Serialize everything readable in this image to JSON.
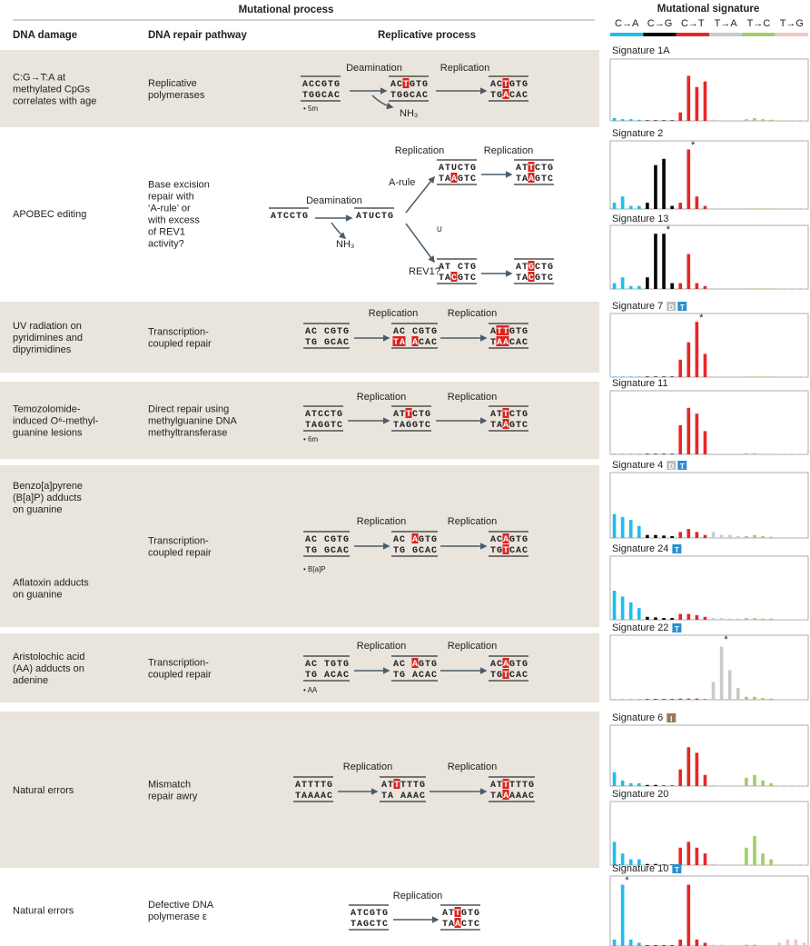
{
  "header": {
    "section": "Mutational process",
    "col1": "DNA damage",
    "col2": "DNA repair pathway",
    "col3": "Replicative process",
    "sig_header": "Mutational signature",
    "classes": [
      {
        "label": "C→A",
        "color": "#1ebff0"
      },
      {
        "label": "C→G",
        "color": "#050708"
      },
      {
        "label": "C→T",
        "color": "#e62725"
      },
      {
        "label": "T→A",
        "color": "#cbcacb"
      },
      {
        "label": "T→C",
        "color": "#a1cf64"
      },
      {
        "label": "T→G",
        "color": "#edc8c5"
      }
    ]
  },
  "rows": [
    {
      "damage": [
        "C:G→T:A at",
        "methylated CpGs",
        "correlates with age"
      ],
      "repair": [
        "Replicative",
        "polymerases"
      ],
      "labels": [
        "Deamination",
        "Replication",
        "NH₃",
        "• 5m"
      ],
      "seqs": [
        {
          "top": {
            "text": "ACCGTG",
            "hl": []
          },
          "bottom": {
            "text": "TGGCAC",
            "hl": []
          }
        },
        {
          "top": {
            "text": "ACTGTG",
            "hl": [
              2
            ]
          },
          "bottom": {
            "text": "TGGCAC",
            "hl": []
          }
        },
        {
          "top": {
            "text": "ACTGTG",
            "hl": [
              2
            ]
          },
          "bottom": {
            "text": "TGACAC",
            "hl": [
              2
            ]
          }
        }
      ]
    },
    {
      "damage": [
        "APOBEC editing"
      ],
      "repair": [
        "Base excision",
        "repair with",
        "‘A-rule’ or",
        "with excess",
        "of REV1",
        "activity?"
      ],
      "labels": [
        "Replication",
        "Replication",
        "A-rule",
        "Deamination",
        "NH₃",
        "U",
        "REV1?"
      ],
      "seqs": [
        {
          "top": {
            "text": "ATCCTG",
            "hl": []
          }
        },
        {
          "top": {
            "text": "ATUCTG",
            "hl": []
          }
        },
        {
          "top": {
            "text": "ATUCTG",
            "hl": []
          },
          "bottom": {
            "text": "TAAGTC",
            "hl": [
              2
            ]
          }
        },
        {
          "top": {
            "text": "ATTCTG",
            "hl": [
              2
            ]
          },
          "bottom": {
            "text": "TAAGTC",
            "hl": [
              2
            ]
          }
        },
        {
          "top": {
            "text": "AT CTG",
            "hl": []
          },
          "bottom": {
            "text": "TACGTC",
            "hl": [
              2
            ]
          }
        },
        {
          "top": {
            "text": "ATGCTG",
            "hl": [
              2
            ]
          },
          "bottom": {
            "text": "TACGTC",
            "hl": [
              2
            ]
          }
        }
      ]
    },
    {
      "damage": [
        "UV radiation on",
        "pyridimines and",
        "dipyrimidines"
      ],
      "repair": [
        "Transcription-",
        "coupled repair"
      ],
      "labels": [
        "Replication",
        "Replication"
      ],
      "seqs": [
        {
          "top": {
            "text": "AC CGTG",
            "hl": []
          },
          "bottom": {
            "text": "TG GCAC",
            "hl": []
          }
        },
        {
          "top": {
            "text": "AC CGTG",
            "hl": []
          },
          "bottom": {
            "text": "TA ACAC",
            "hl": [
              0,
              1,
              3
            ]
          }
        },
        {
          "top": {
            "text": "ATTGTG",
            "hl": [
              1,
              2
            ]
          },
          "bottom": {
            "text": "TAACAC",
            "hl": [
              1,
              2
            ]
          }
        }
      ]
    },
    {
      "damage": [
        "Temozolomide-",
        "induced O⁶-methyl-",
        "guanine lesions"
      ],
      "repair": [
        "Direct repair using",
        "methylguanine DNA",
        "methyltransferase"
      ],
      "labels": [
        "Replication",
        "Replication",
        "• 6m"
      ],
      "seqs": [
        {
          "top": {
            "text": "ATCCTG",
            "hl": []
          },
          "bottom": {
            "text": "TAGGTC",
            "hl": []
          }
        },
        {
          "top": {
            "text": "ATTCTG",
            "hl": [
              2
            ]
          },
          "bottom": {
            "text": "TAGGTC",
            "hl": []
          }
        },
        {
          "top": {
            "text": "ATTCTG",
            "hl": [
              2
            ]
          },
          "bottom": {
            "text": "TAAGTC",
            "hl": [
              2
            ]
          }
        }
      ]
    },
    {
      "damage": [
        "Benzo[a]pyrene",
        "(B[a]P) adducts",
        "on guanine"
      ],
      "damage2": [
        "Aflatoxin adducts",
        "on guanine"
      ],
      "repair": [
        "Transcription-",
        "coupled repair"
      ],
      "labels": [
        "Replication",
        "Replication",
        "• B[a]P"
      ],
      "seqs": [
        {
          "top": {
            "text": "AC CGTG",
            "hl": []
          },
          "bottom": {
            "text": "TG GCAC",
            "hl": []
          }
        },
        {
          "top": {
            "text": "AC AGTG",
            "hl": [
              3
            ]
          },
          "bottom": {
            "text": "TG GCAC",
            "hl": []
          }
        },
        {
          "top": {
            "text": "ACAGTG",
            "hl": [
              2
            ]
          },
          "bottom": {
            "text": "TGTCAC",
            "hl": [
              2
            ]
          }
        }
      ]
    },
    {
      "damage": [
        "Aristolochic acid",
        "(AA) adducts on",
        "adenine"
      ],
      "repair": [
        "Transcription-",
        "coupled repair"
      ],
      "labels": [
        "Replication",
        "Replication",
        "• AA"
      ],
      "seqs": [
        {
          "top": {
            "text": "AC TGTG",
            "hl": []
          },
          "bottom": {
            "text": "TG ACAC",
            "hl": []
          }
        },
        {
          "top": {
            "text": "AC AGTG",
            "hl": [
              3
            ]
          },
          "bottom": {
            "text": "TG ACAC",
            "hl": []
          }
        },
        {
          "top": {
            "text": "ACAGTG",
            "hl": [
              2
            ]
          },
          "bottom": {
            "text": "TGTCAC",
            "hl": [
              2
            ]
          }
        }
      ]
    },
    {
      "damage": [
        "Natural errors"
      ],
      "repair": [
        "Mismatch",
        "repair awry"
      ],
      "labels": [
        "Replication",
        "Replication"
      ],
      "seqs": [
        {
          "top": {
            "text": "ATTTTG",
            "hl": []
          },
          "bottom": {
            "text": "TAAAAC",
            "hl": []
          }
        },
        {
          "top": {
            "text": "ATTTTTG",
            "hl": [
              2
            ]
          },
          "bottom": {
            "text": "TA AAAC",
            "hl": []
          }
        },
        {
          "top": {
            "text": "ATTTTTG",
            "hl": [
              2
            ]
          },
          "bottom": {
            "text": "TAAAAAC",
            "hl": [
              2
            ]
          }
        }
      ]
    },
    {
      "damage": [
        "Natural errors"
      ],
      "repair": [
        "Defective DNA",
        "polymerase ε"
      ],
      "labels": [
        "Replication"
      ],
      "seqs": [
        {
          "top": {
            "text": "ATCGTG",
            "hl": []
          },
          "bottom": {
            "text": "TAGCTC",
            "hl": []
          }
        },
        {
          "top": {
            "text": "ATTGTG",
            "hl": [
              2
            ]
          },
          "bottom": {
            "text": "TAACTC",
            "hl": [
              2
            ]
          }
        }
      ]
    }
  ],
  "signatures": [
    {
      "name": "Signature 1A",
      "badges": [],
      "values": [
        0.05,
        0.03,
        0.03,
        0.02,
        0.01,
        0.01,
        0.01,
        0.01,
        0.15,
        0.8,
        0.6,
        0.7,
        0.02,
        0.01,
        0.01,
        0.01,
        0.03,
        0.05,
        0.03,
        0.02,
        0.01,
        0.01,
        0.01,
        0.01
      ]
    },
    {
      "name": "Signature 2",
      "badges": [],
      "star": "*",
      "star_at": 9,
      "values": [
        0.1,
        0.2,
        0.05,
        0.05,
        0.1,
        0.7,
        0.8,
        0.05,
        0.1,
        0.95,
        0.2,
        0.05,
        0.01,
        0.01,
        0.01,
        0.01,
        0.01,
        0.01,
        0.01,
        0.01,
        0.01,
        0.01,
        0.01,
        0.01
      ]
    },
    {
      "name": "Signature 13",
      "badges": [],
      "star": "*",
      "star_at": 6,
      "values": [
        0.1,
        0.2,
        0.05,
        0.05,
        0.2,
        0.95,
        0.95,
        0.1,
        0.1,
        0.6,
        0.1,
        0.05,
        0.01,
        0.01,
        0.01,
        0.01,
        0.01,
        0.01,
        0.01,
        0.01,
        0.01,
        0.01,
        0.01,
        0.01
      ]
    },
    {
      "name": "Signature 7",
      "badges": [
        "D",
        "T"
      ],
      "star": "*",
      "star_at": 10,
      "values": [
        0.01,
        0.01,
        0.01,
        0.01,
        0.01,
        0.01,
        0.01,
        0.01,
        0.3,
        0.6,
        0.95,
        0.4,
        0.01,
        0.01,
        0.01,
        0.01,
        0.01,
        0.01,
        0.01,
        0.01,
        0.01,
        0.01,
        0.01,
        0.01
      ]
    },
    {
      "name": "Signature 11",
      "badges": [],
      "values": [
        0.01,
        0.01,
        0.01,
        0.01,
        0.01,
        0.01,
        0.01,
        0.01,
        0.5,
        0.8,
        0.7,
        0.4,
        0.01,
        0.01,
        0.01,
        0.01,
        0.02,
        0.02,
        0.01,
        0.01,
        0.01,
        0.01,
        0.01,
        0.01
      ]
    },
    {
      "name": "Signature 4",
      "badges": [
        "D",
        "T"
      ],
      "values": [
        0.4,
        0.35,
        0.3,
        0.2,
        0.05,
        0.05,
        0.04,
        0.03,
        0.1,
        0.15,
        0.1,
        0.05,
        0.1,
        0.05,
        0.05,
        0.03,
        0.03,
        0.05,
        0.03,
        0.02,
        0.01,
        0.01,
        0.01,
        0.01
      ]
    },
    {
      "name": "Signature 24",
      "badges": [
        "T"
      ],
      "values": [
        0.5,
        0.4,
        0.3,
        0.2,
        0.05,
        0.04,
        0.03,
        0.03,
        0.1,
        0.1,
        0.08,
        0.05,
        0.03,
        0.03,
        0.02,
        0.02,
        0.03,
        0.03,
        0.02,
        0.02,
        0.01,
        0.01,
        0.01,
        0.01
      ]
    },
    {
      "name": "Signature 22",
      "badges": [
        "T"
      ],
      "star": "*",
      "star_at": 13,
      "values": [
        0.01,
        0.01,
        0.01,
        0.01,
        0.01,
        0.01,
        0.01,
        0.01,
        0.02,
        0.02,
        0.02,
        0.01,
        0.3,
        0.9,
        0.5,
        0.2,
        0.05,
        0.05,
        0.03,
        0.02,
        0.01,
        0.01,
        0.01,
        0.01
      ]
    },
    {
      "name": "Signature 6",
      "badges": [
        "I"
      ],
      "values": [
        0.25,
        0.1,
        0.05,
        0.05,
        0.02,
        0.02,
        0.01,
        0.01,
        0.3,
        0.7,
        0.6,
        0.2,
        0.02,
        0.01,
        0.01,
        0.01,
        0.15,
        0.2,
        0.1,
        0.05,
        0.01,
        0.01,
        0.01,
        0.01
      ]
    },
    {
      "name": "Signature 20",
      "badges": [],
      "values": [
        0.4,
        0.2,
        0.1,
        0.1,
        0.02,
        0.02,
        0.01,
        0.01,
        0.3,
        0.4,
        0.3,
        0.2,
        0.02,
        0.01,
        0.01,
        0.01,
        0.3,
        0.5,
        0.2,
        0.1,
        0.01,
        0.01,
        0.01,
        0.01
      ]
    },
    {
      "name": "Signature 10",
      "badges": [
        "T"
      ],
      "star": "*",
      "star_at": 1,
      "values": [
        0.1,
        0.95,
        0.1,
        0.05,
        0.01,
        0.01,
        0.01,
        0.01,
        0.1,
        0.95,
        0.1,
        0.05,
        0.02,
        0.02,
        0.01,
        0.01,
        0.02,
        0.02,
        0.01,
        0.01,
        0.05,
        0.1,
        0.1,
        0.05
      ]
    }
  ],
  "badge_colors": {
    "D": "#bdbdbd",
    "T": "#2a8fd0",
    "I": "#9a7a5a"
  },
  "ylim": [
    0,
    1
  ]
}
